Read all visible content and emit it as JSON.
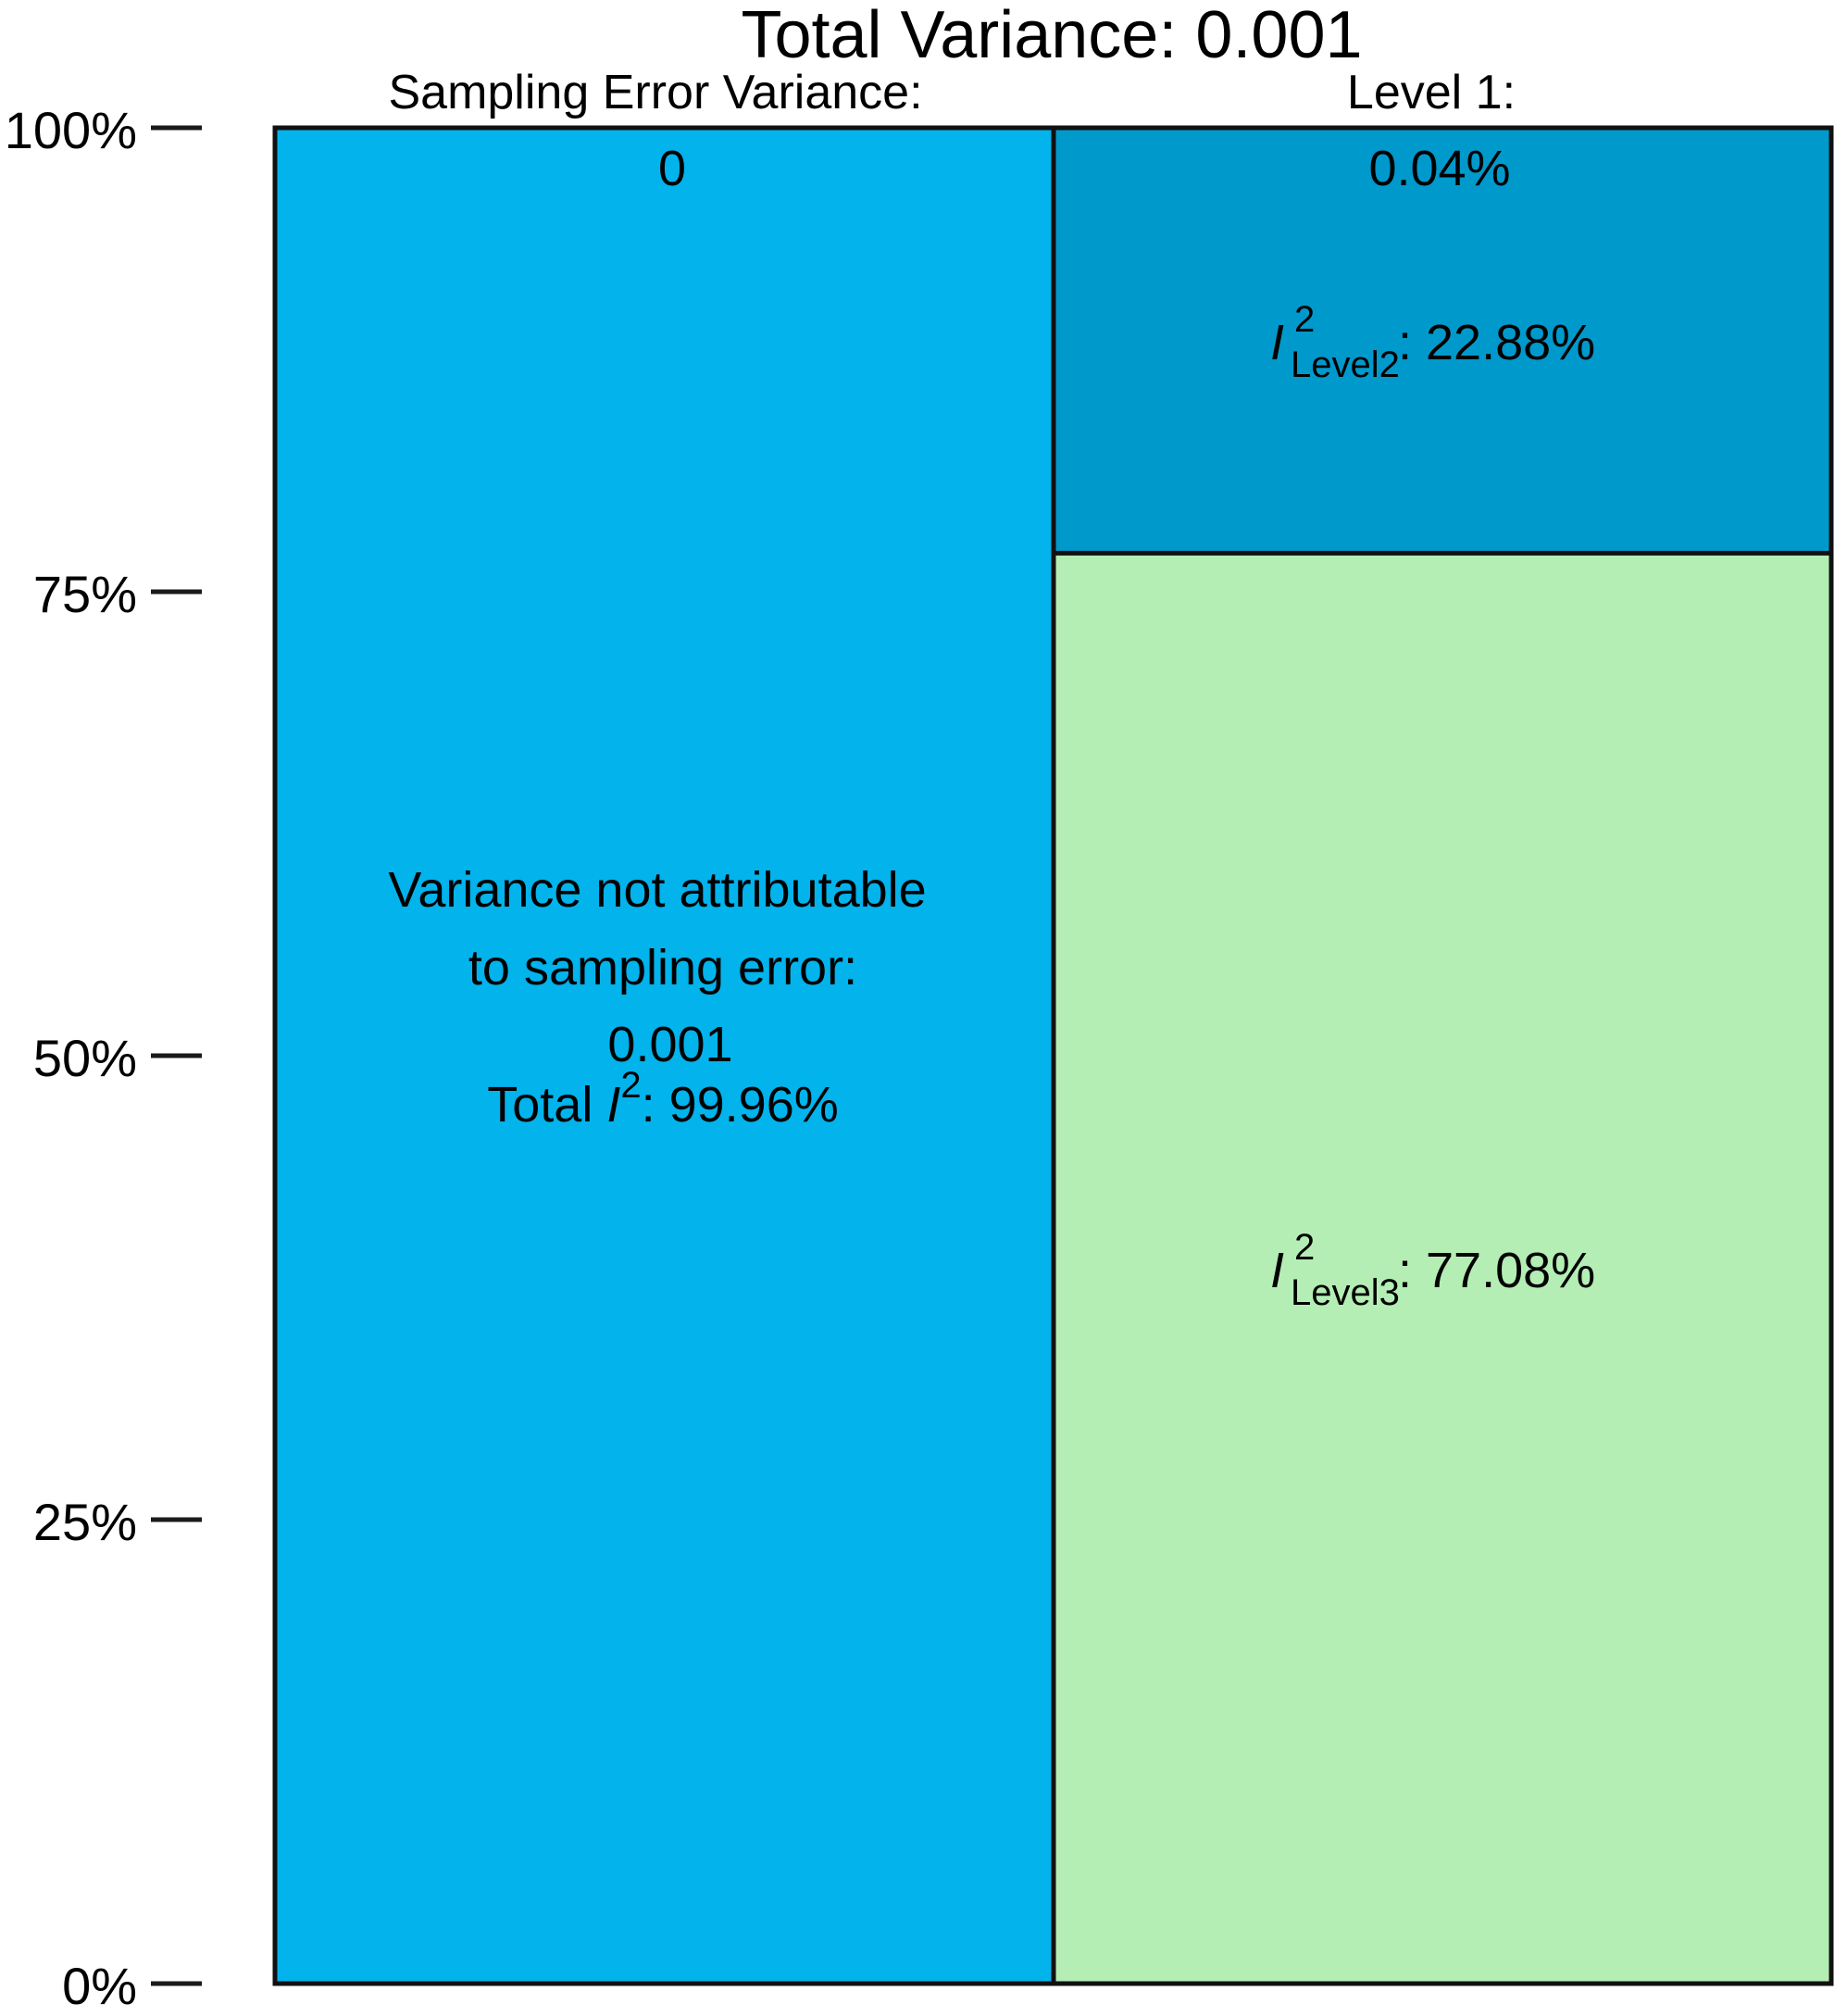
{
  "chart_data": {
    "type": "stacked-bar",
    "title": "Total Variance: 0.001",
    "y_ticks": [
      "100%",
      "75%",
      "50%",
      "25%",
      "0%"
    ],
    "ylim": [
      0,
      100
    ],
    "columns": [
      {
        "header": "Sampling Error Variance:",
        "segments": [
          {
            "name": "sampling-error",
            "value": 0,
            "color": "#02B3EC",
            "label_text": "0"
          },
          {
            "name": "not-attributable",
            "value": 99.96,
            "color": "#02B3EC",
            "label_lines": [
              "Variance not attributable",
              "to sampling error:",
              "0.001"
            ],
            "i2_prefix": "Total ",
            "i2_symbol": "I",
            "i2_sup": "2",
            "i2_value": ": 99.96%"
          }
        ]
      },
      {
        "header": "Level 1:",
        "segments": [
          {
            "name": "level1",
            "value": 0.04,
            "color": "#0099CC",
            "label_text": "0.04%"
          },
          {
            "name": "level2",
            "value": 22.88,
            "color": "#0099CC",
            "i2_symbol": "I",
            "i2_sup": "2",
            "i2_sub": "Level2",
            "i2_value": ": 22.88%"
          },
          {
            "name": "level3",
            "value": 77.08,
            "color": "#B4EEB4",
            "i2_symbol": "I",
            "i2_sup": "2",
            "i2_sub": "Level3",
            "i2_value": ": 77.08%"
          }
        ]
      }
    ]
  }
}
